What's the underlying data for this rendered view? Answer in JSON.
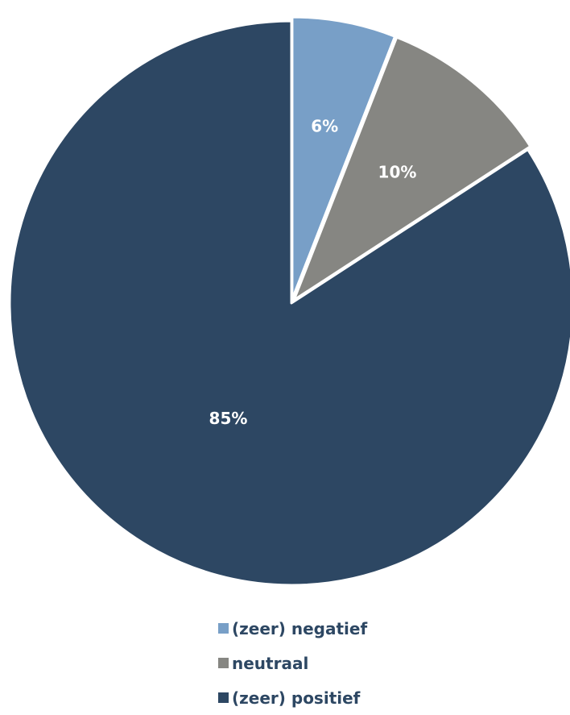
{
  "chart_data": {
    "type": "pie",
    "title": "",
    "categories": [
      "(zeer) negatief",
      "neutraal",
      "(zeer) positief"
    ],
    "values": [
      6,
      10,
      85
    ],
    "labels": [
      "6%",
      "10%",
      "85%"
    ],
    "colors": [
      "#789fc7",
      "#868682",
      "#2d4763"
    ],
    "exploded": [
      true,
      true,
      false
    ],
    "start_angle": "12 o'clock",
    "direction": "clockwise",
    "legend_position": "bottom"
  }
}
